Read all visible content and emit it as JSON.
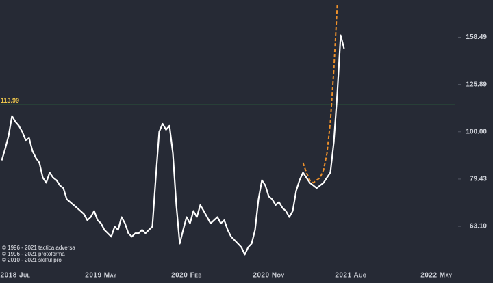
{
  "chart_data": {
    "type": "line",
    "log_y": true,
    "ylim": [
      51,
      190
    ],
    "yticks": [
      {
        "value": 63.1,
        "label": "63.10"
      },
      79.43,
      {
        "value": 100,
        "label": "100.00"
      },
      125.89,
      158.49
    ],
    "hline": 113.99,
    "hline_color": "#3fd24b",
    "hline_label_color": "#f2c94c",
    "categories": [
      null,
      null,
      null,
      null,
      "2018 Jul",
      null,
      null,
      null,
      null,
      null,
      null,
      null,
      null,
      null,
      null,
      null,
      null,
      null,
      null,
      null,
      null,
      null,
      null,
      null,
      null,
      null,
      null,
      null,
      null,
      "2019 May",
      null,
      null,
      null,
      null,
      null,
      null,
      null,
      null,
      null,
      null,
      null,
      null,
      null,
      null,
      null,
      null,
      null,
      null,
      null,
      null,
      null,
      null,
      null,
      null,
      "2020 Feb",
      null,
      null,
      null,
      null,
      null,
      null,
      null,
      null,
      null,
      null,
      null,
      null,
      null,
      null,
      null,
      null,
      null,
      null,
      null,
      null,
      null,
      null,
      null,
      "2020 Nov",
      null,
      null,
      null,
      null,
      null,
      null,
      null,
      null,
      null,
      null,
      null,
      null,
      null,
      null,
      null,
      null,
      null,
      null,
      null,
      null,
      null,
      null,
      null,
      "2021 Aug",
      null,
      null,
      null,
      null,
      null,
      null,
      null,
      null,
      null,
      null,
      null,
      null,
      null,
      null,
      null,
      null,
      null,
      null,
      null,
      null,
      null,
      null,
      null,
      null,
      "2022 May",
      null,
      null,
      null,
      null,
      null
    ],
    "series": [
      {
        "color": "#ffffff",
        "dashed": false,
        "values": [
          87,
          92,
          98,
          108,
          105,
          103,
          100,
          96,
          97,
          91,
          88,
          86,
          80,
          78,
          82,
          80,
          79,
          77,
          76,
          72,
          71,
          70,
          69,
          68,
          67,
          65,
          66,
          68,
          65,
          64,
          62,
          61,
          60,
          63,
          62,
          66,
          64,
          61,
          60,
          61,
          61,
          62,
          61,
          62,
          63,
          80,
          100,
          104,
          101,
          103,
          90,
          70,
          58,
          62,
          66,
          64,
          68,
          66,
          70,
          68,
          66,
          64,
          65,
          66,
          64,
          65,
          62,
          60,
          59,
          58,
          57,
          55,
          57,
          58,
          62,
          72,
          79,
          77,
          73,
          72,
          70,
          71,
          69,
          68,
          66,
          68,
          75,
          79,
          82,
          80,
          78,
          77,
          76,
          77,
          78,
          80,
          82,
          95,
          120,
          160,
          150,
          null,
          null,
          null,
          null,
          null,
          null,
          null,
          null,
          null,
          null,
          null,
          null,
          null,
          null,
          null,
          null,
          null,
          null,
          null,
          null,
          null,
          null,
          null,
          null,
          null,
          null,
          null,
          null,
          null,
          null,
          null,
          null
        ]
      },
      {
        "color": "#f0922b",
        "dashed": true,
        "values": [
          null,
          null,
          null,
          null,
          null,
          null,
          null,
          null,
          null,
          null,
          null,
          null,
          null,
          null,
          null,
          null,
          null,
          null,
          null,
          null,
          null,
          null,
          null,
          null,
          null,
          null,
          null,
          null,
          null,
          null,
          null,
          null,
          null,
          null,
          null,
          null,
          null,
          null,
          null,
          null,
          null,
          null,
          null,
          null,
          null,
          null,
          null,
          null,
          null,
          null,
          null,
          null,
          null,
          null,
          null,
          null,
          null,
          null,
          null,
          null,
          null,
          null,
          null,
          null,
          null,
          null,
          null,
          null,
          null,
          null,
          null,
          null,
          null,
          null,
          null,
          null,
          null,
          null,
          null,
          null,
          null,
          null,
          null,
          null,
          null,
          null,
          null,
          null,
          86,
          82,
          79,
          78,
          79,
          80,
          83,
          90,
          105,
          135,
          185,
          null,
          null,
          null,
          null,
          null,
          null,
          null,
          null,
          null,
          null,
          null,
          null,
          null,
          null,
          null,
          null,
          null,
          null,
          null,
          null,
          null,
          null,
          null,
          null,
          null,
          null,
          null,
          null,
          null,
          null,
          null,
          null,
          null,
          null
        ]
      }
    ],
    "notes": [
      "© 1996 - 2021 tactica adversa",
      "© 1996 - 2021 protoforma",
      "© 2010 - 2021 skilful pro"
    ]
  }
}
